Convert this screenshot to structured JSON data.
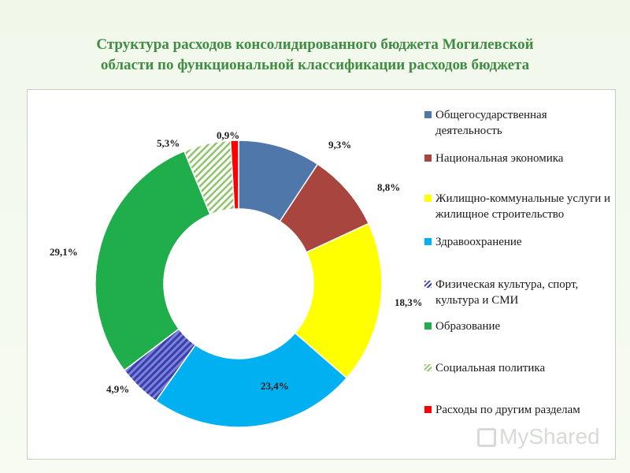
{
  "chart_data": {
    "type": "pie",
    "variant": "donut",
    "title_lines": [
      "Структура расходов консолидированного бюджета Могилевской",
      "области по функциональной классификации расходов бюджета"
    ],
    "legend_position": "right",
    "slices": [
      {
        "name": "Общегосударственная деятельность",
        "value": 9.3,
        "label": "9,3%",
        "color": "#4f77aa",
        "pattern": "solid"
      },
      {
        "name": "Национальная экономика",
        "value": 8.8,
        "label": "8,8%",
        "color": "#a8453e",
        "pattern": "solid"
      },
      {
        "name": "Жилищно-коммунальные услуги и жилищное строительство",
        "value": 18.3,
        "label": "18,3%",
        "color": "#ffff00",
        "pattern": "solid"
      },
      {
        "name": "Здравоохранение",
        "value": 23.4,
        "label": "23,4%",
        "color": "#00b0f0",
        "pattern": "solid"
      },
      {
        "name": "Физическая культура, спорт, культура и СМИ",
        "value": 4.9,
        "label": "4,9%",
        "color": "#3a3fb0",
        "pattern": "hatched"
      },
      {
        "name": "Образование",
        "value": 29.1,
        "label": "29,1%",
        "color": "#1fae4b",
        "pattern": "solid"
      },
      {
        "name": "Социальная политика",
        "value": 5.3,
        "label": "5,3%",
        "color": "#8fc56a",
        "pattern": "hatched"
      },
      {
        "name": "Расходы по другим разделам",
        "value": 0.9,
        "label": "0,9%",
        "color": "#ff0000",
        "pattern": "solid"
      }
    ]
  },
  "watermark": {
    "text": "MyShared"
  }
}
